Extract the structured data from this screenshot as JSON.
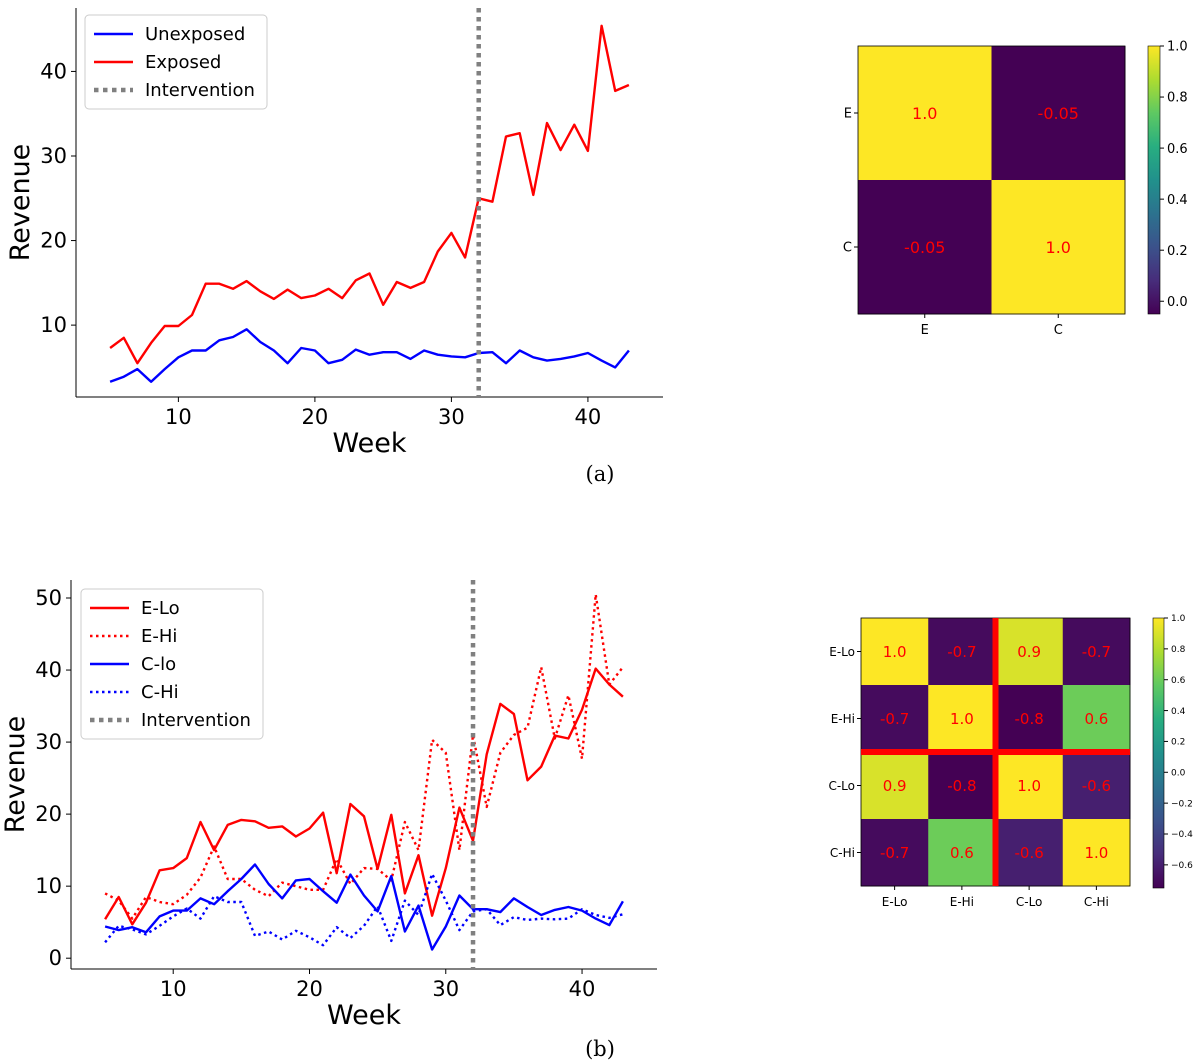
{
  "panels": {
    "a": {
      "caption": "(a)"
    },
    "b": {
      "caption": "(b)"
    }
  },
  "colors": {
    "red": "#ff0000",
    "blue": "#0000ff",
    "grey": "#808080"
  },
  "chart_data": [
    {
      "id": "a-line",
      "type": "line",
      "xlabel": "Week",
      "ylabel": "Revenue",
      "xlim": [
        2.5,
        45.5
      ],
      "ylim": [
        1.5,
        47.5
      ],
      "xticks": [
        10,
        20,
        30,
        40
      ],
      "yticks": [
        10,
        20,
        30,
        40
      ],
      "x": [
        5,
        6,
        7,
        8,
        9,
        10,
        11,
        12,
        13,
        14,
        15,
        16,
        17,
        18,
        19,
        20,
        21,
        22,
        23,
        24,
        25,
        26,
        27,
        28,
        29,
        30,
        31,
        32,
        33,
        34,
        35,
        36,
        37,
        38,
        39,
        40,
        41,
        42,
        43
      ],
      "series": [
        {
          "name": "Unexposed",
          "color": "#0000ff",
          "style": "solid",
          "values": [
            3.3,
            3.9,
            4.8,
            3.3,
            4.8,
            6.2,
            7.0,
            7.0,
            8.2,
            8.6,
            9.5,
            8.0,
            7.0,
            5.5,
            7.3,
            7.0,
            5.5,
            5.9,
            7.1,
            6.5,
            6.8,
            6.8,
            6.0,
            7.0,
            6.5,
            6.3,
            6.2,
            6.7,
            6.8,
            5.5,
            7.0,
            6.2,
            5.8,
            6.0,
            6.3,
            6.7,
            5.8,
            5.0,
            7.0
          ]
        },
        {
          "name": "Exposed",
          "color": "#ff0000",
          "style": "solid",
          "values": [
            7.3,
            8.5,
            5.5,
            7.9,
            9.9,
            9.9,
            11.2,
            14.9,
            14.9,
            14.3,
            15.2,
            14.0,
            13.1,
            14.2,
            13.2,
            13.5,
            14.3,
            13.2,
            15.3,
            16.1,
            12.4,
            15.1,
            14.4,
            15.1,
            18.7,
            20.9,
            18.0,
            25.0,
            24.6,
            32.3,
            32.7,
            25.4,
            33.9,
            30.7,
            33.7,
            30.6,
            45.4,
            37.7,
            38.4
          ]
        }
      ],
      "intervention": {
        "name": "Intervention",
        "x": 32,
        "color": "#808080",
        "style": "dotted"
      },
      "legend": "top-left"
    },
    {
      "id": "a-heatmap",
      "type": "heatmap",
      "labels": [
        "E",
        "C"
      ],
      "values": [
        [
          1.0,
          -0.05
        ],
        [
          -0.05,
          1.0
        ]
      ],
      "annotations": [
        [
          "1.0",
          "-0.05"
        ],
        [
          "-0.05",
          "1.0"
        ]
      ],
      "colorbar_ticks": [
        "0.0",
        "0.2",
        "0.4",
        "0.6",
        "0.8",
        "1.0"
      ],
      "vmin": -0.05,
      "vmax": 1.0,
      "annotation_color": "#ff0000"
    },
    {
      "id": "b-line",
      "type": "line",
      "xlabel": "Week",
      "ylabel": "Revenue",
      "xlim": [
        2.5,
        45.5
      ],
      "ylim": [
        -1.5,
        52.5
      ],
      "xticks": [
        10,
        20,
        30,
        40
      ],
      "yticks": [
        0,
        10,
        20,
        30,
        40,
        50
      ],
      "x": [
        5,
        6,
        7,
        8,
        9,
        10,
        11,
        12,
        13,
        14,
        15,
        16,
        17,
        18,
        19,
        20,
        21,
        22,
        23,
        24,
        25,
        26,
        27,
        28,
        29,
        30,
        31,
        32,
        33,
        34,
        35,
        36,
        37,
        38,
        39,
        40,
        41,
        42,
        43
      ],
      "series": [
        {
          "name": "E-Lo",
          "color": "#ff0000",
          "style": "solid",
          "values": [
            5.4,
            8.5,
            4.7,
            7.7,
            12.2,
            12.5,
            13.9,
            18.9,
            15.0,
            18.5,
            19.2,
            19.0,
            18.1,
            18.3,
            16.9,
            18.0,
            20.2,
            11.8,
            21.4,
            19.7,
            12.4,
            19.9,
            9.0,
            14.3,
            5.9,
            12.5,
            20.9,
            16.3,
            28.3,
            35.3,
            33.9,
            24.7,
            26.6,
            30.9,
            30.5,
            34.5,
            40.2,
            38.0,
            36.3
          ]
        },
        {
          "name": "E-Hi",
          "color": "#ff0000",
          "style": "dotted",
          "values": [
            9.0,
            8.0,
            5.5,
            8.5,
            7.8,
            7.5,
            8.8,
            11.2,
            15.5,
            11.0,
            11.0,
            9.5,
            8.6,
            10.5,
            10.0,
            9.5,
            9.5,
            13.8,
            10.3,
            12.5,
            12.4,
            10.8,
            18.9,
            15.0,
            30.3,
            28.5,
            15.0,
            31.0,
            21.0,
            28.5,
            31.0,
            32.0,
            40.4,
            30.5,
            36.5,
            27.7,
            50.5,
            38.0,
            40.4
          ]
        },
        {
          "name": "C-lo",
          "color": "#0000ff",
          "style": "solid",
          "values": [
            4.4,
            3.9,
            4.3,
            3.6,
            5.8,
            6.6,
            6.6,
            8.3,
            7.5,
            9.3,
            11.0,
            13.0,
            10.3,
            8.3,
            10.8,
            11.0,
            9.3,
            7.7,
            11.6,
            8.7,
            6.5,
            11.4,
            3.7,
            7.3,
            1.2,
            4.4,
            8.7,
            6.8,
            6.8,
            6.4,
            8.3,
            7.1,
            6.0,
            6.7,
            7.1,
            6.6,
            5.5,
            4.6,
            7.9
          ]
        },
        {
          "name": "C-Hi",
          "color": "#0000ff",
          "style": "dotted",
          "values": [
            2.2,
            4.5,
            4.0,
            3.3,
            4.5,
            5.8,
            6.9,
            5.5,
            8.6,
            7.8,
            7.8,
            3.1,
            3.7,
            2.6,
            3.8,
            2.9,
            1.8,
            4.3,
            2.8,
            4.5,
            7.2,
            2.4,
            8.0,
            6.0,
            11.7,
            8.0,
            3.9,
            6.5,
            6.8,
            4.6,
            5.7,
            5.3,
            5.5,
            5.4,
            5.5,
            6.8,
            6.0,
            5.6,
            6.1
          ]
        }
      ],
      "intervention": {
        "name": "Intervention",
        "x": 32,
        "color": "#808080",
        "style": "dotted"
      },
      "legend": "top-left"
    },
    {
      "id": "b-heatmap",
      "type": "heatmap",
      "labels": [
        "E-Lo",
        "E-Hi",
        "C-Lo",
        "C-Hi"
      ],
      "values": [
        [
          1.0,
          -0.7,
          0.9,
          -0.7
        ],
        [
          -0.7,
          1.0,
          -0.8,
          0.6
        ],
        [
          0.9,
          -0.8,
          1.0,
          -0.6
        ],
        [
          -0.7,
          0.6,
          -0.6,
          1.0
        ]
      ],
      "annotations": [
        [
          "1.0",
          "-0.7",
          "0.9",
          "-0.7"
        ],
        [
          "-0.7",
          "1.0",
          "-0.8",
          "0.6"
        ],
        [
          "0.9",
          "-0.8",
          "1.0",
          "-0.6"
        ],
        [
          "-0.7",
          "0.6",
          "-0.6",
          "1.0"
        ]
      ],
      "colorbar_ticks": [
        "−0.6",
        "−0.4",
        "−0.2",
        "0.0",
        "0.2",
        "0.4",
        "0.6",
        "0.8",
        "1.0"
      ],
      "vmin": -0.75,
      "vmax": 1.0,
      "annotation_color": "#ff0000",
      "separator": {
        "after_index": 2,
        "color": "#ff0000"
      }
    }
  ]
}
